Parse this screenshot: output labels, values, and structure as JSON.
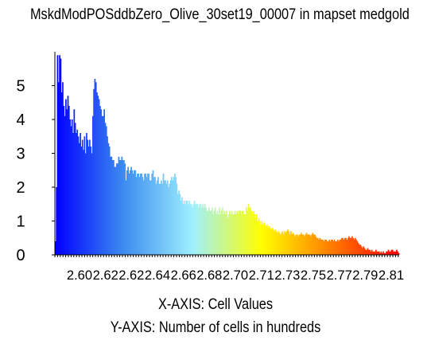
{
  "chart_data": {
    "type": "bar",
    "title": "MskdModPOSddbZero_Olive_30set19_00007 in mapset medgold",
    "xlabel": "X-AXIS: Cell Values",
    "ylabel": "Y-AXIS: Number of cells in hundreds",
    "y_ticks": [
      "0",
      "1",
      "2",
      "3",
      "4",
      "5"
    ],
    "x_tick_labels": [
      "2.60",
      "2.62",
      "2.62",
      "2.64",
      "2.66",
      "2.68",
      "2.70",
      "2.71",
      "2.73",
      "2.75",
      "2.77",
      "2.79",
      "2.81"
    ],
    "ylim": [
      0,
      6
    ],
    "grid": false,
    "color_ramp": [
      "#0000ff",
      "#3d8cf0",
      "#9ff0ff",
      "#ffff00",
      "#ff7f00",
      "#ff0000"
    ],
    "series": [
      {
        "values": [
          0.4,
          2.0,
          5.9,
          5.1,
          5.9,
          5.8,
          4.8,
          5.1,
          4.4,
          4.1,
          4.6,
          4.3,
          4.7,
          4.4,
          4.0,
          3.8,
          4.0,
          3.6,
          4.3,
          3.9,
          3.6,
          3.7,
          3.5,
          3.3,
          3.6,
          3.2,
          3.4,
          3.1,
          3.5,
          3.0,
          3.6,
          3.4,
          3.2,
          3.4,
          3.2,
          3.0,
          4.1,
          4.9,
          5.2,
          5.1,
          4.8,
          4.7,
          4.6,
          4.4,
          4.3,
          4.1,
          4.1,
          4.3,
          3.9,
          3.8,
          3.5,
          3.3,
          3.2,
          2.9,
          2.9,
          2.8,
          2.8,
          2.6,
          2.6,
          2.7,
          2.7,
          2.9,
          2.8,
          2.8,
          2.9,
          2.8,
          2.8,
          2.7,
          2.2,
          2.5,
          2.6,
          2.4,
          2.5,
          2.6,
          2.5,
          2.4,
          2.5,
          2.5,
          2.3,
          2.4,
          2.4,
          2.3,
          2.4,
          2.4,
          2.3,
          2.2,
          2.4,
          2.4,
          2.3,
          2.4,
          2.4,
          2.2,
          2.2,
          2.4,
          2.5,
          2.3,
          2.3,
          2.1,
          2.2,
          2.3,
          2.1,
          2.1,
          2.2,
          2.1,
          2.4,
          2.2,
          2.2,
          2.1,
          2.2,
          2.0,
          2.1,
          2.2,
          2.3,
          2.2,
          2.3,
          2.4,
          2.3,
          2.1,
          1.8,
          1.9,
          1.8,
          1.6,
          1.7,
          1.5,
          1.6,
          1.5,
          1.6,
          1.6,
          1.5,
          1.6,
          1.5,
          1.5,
          1.4,
          1.5,
          1.6,
          1.5,
          1.5,
          1.5,
          1.4,
          1.5,
          1.5,
          1.4,
          1.5,
          1.4,
          1.5,
          1.4,
          1.3,
          1.3,
          1.4,
          1.3,
          1.3,
          1.4,
          1.2,
          1.3,
          1.4,
          1.2,
          1.3,
          1.2,
          1.4,
          1.2,
          1.3,
          1.4,
          1.2,
          1.3,
          1.2,
          1.3,
          1.1,
          1.2,
          1.3,
          1.2,
          1.3,
          1.2,
          1.2,
          1.3,
          1.2,
          1.3,
          1.2,
          1.3,
          1.3,
          1.2,
          1.3,
          1.3,
          1.2,
          1.2,
          1.4,
          1.3,
          1.5,
          1.4,
          1.4,
          1.3,
          1.2,
          1.3,
          1.2,
          1.1,
          1.2,
          1.0,
          1.1,
          1.0,
          0.9,
          1.0,
          0.9,
          0.95,
          0.9,
          0.85,
          0.9,
          0.8,
          0.85,
          0.8,
          0.75,
          0.8,
          0.75,
          0.7,
          0.75,
          0.7,
          0.65,
          0.7,
          0.65,
          0.6,
          0.65,
          0.7,
          0.6,
          0.7,
          0.65,
          0.7,
          0.75,
          0.7,
          0.6,
          0.7,
          0.6,
          0.65,
          0.6,
          0.55,
          0.6,
          0.6,
          0.55,
          0.6,
          0.6,
          0.65,
          0.6,
          0.6,
          0.55,
          0.6,
          0.65,
          0.6,
          0.6,
          0.6,
          0.55,
          0.6,
          0.65,
          0.6,
          0.6,
          0.55,
          0.5,
          0.5,
          0.45,
          0.5,
          0.45,
          0.45,
          0.45,
          0.4,
          0.45,
          0.45,
          0.4,
          0.4,
          0.45,
          0.4,
          0.45,
          0.45,
          0.4,
          0.45,
          0.4,
          0.4,
          0.45,
          0.4,
          0.45,
          0.45,
          0.5,
          0.5,
          0.45,
          0.5,
          0.5,
          0.45,
          0.5,
          0.55,
          0.5,
          0.5,
          0.55,
          0.5,
          0.45,
          0.5,
          0.45,
          0.4,
          0.35,
          0.3,
          0.3,
          0.25,
          0.2,
          0.25,
          0.2,
          0.15,
          0.15,
          0.2,
          0.15,
          0.15,
          0.1,
          0.15,
          0.1,
          0.1,
          0.1,
          0.15,
          0.1,
          0.1,
          0.1,
          0.05,
          0.1,
          0.05,
          0.1,
          0.05,
          0.05,
          0.1,
          0.1,
          0.15,
          0.1,
          0.1,
          0.15,
          0.15,
          0.1,
          0.1,
          0.1,
          0.15,
          0.1,
          0.05
        ]
      }
    ]
  }
}
